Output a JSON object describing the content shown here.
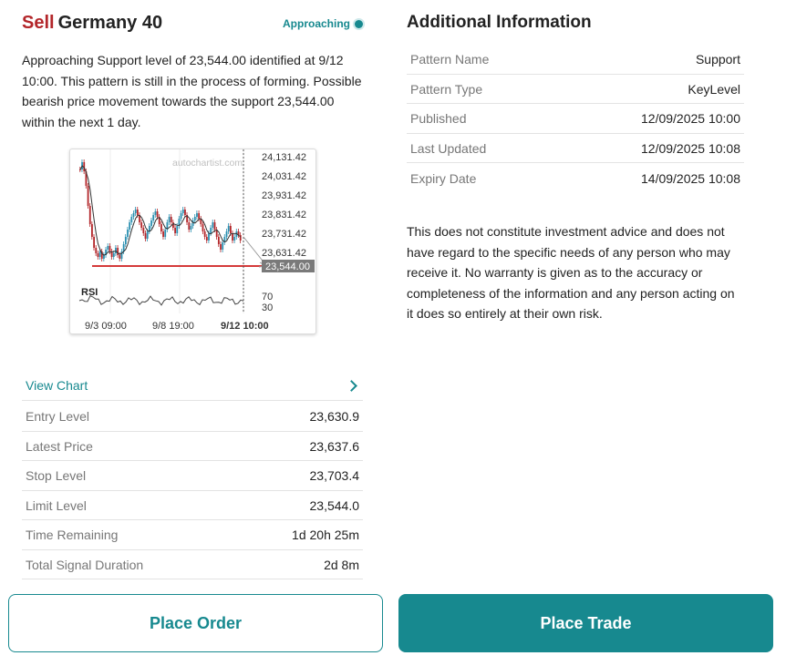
{
  "header": {
    "direction": "Sell",
    "instrument": "Germany 40",
    "status": "Approaching"
  },
  "description": "Approaching Support level of 23,544.00 identified at 9/12 10:00. This pattern is still in the process of forming. Possible bearish price movement towards the support 23,544.00 within the next 1 day.",
  "chart": {
    "watermark": "autochartist.com",
    "price_ticks": [
      "24,131.42",
      "24,031.42",
      "23,931.42",
      "23,831.42",
      "23,731.42",
      "23,631.42"
    ],
    "support_label": "23,544.00",
    "rsi_label": "RSI",
    "rsi_ticks": [
      "70",
      "30"
    ],
    "time_ticks": [
      "9/3 09:00",
      "9/8 19:00",
      "9/12 10:00"
    ],
    "colors": {
      "up": "#2a8fb0",
      "down": "#b3262a",
      "support": "#d43a3a"
    }
  },
  "view_chart_label": "View Chart",
  "levels": [
    {
      "label": "Entry Level",
      "value": "23,630.9"
    },
    {
      "label": "Latest Price",
      "value": "23,637.6"
    },
    {
      "label": "Stop Level",
      "value": "23,703.4"
    },
    {
      "label": "Limit Level",
      "value": "23,544.0"
    },
    {
      "label": "Time Remaining",
      "value": "1d 20h 25m"
    },
    {
      "label": "Total Signal Duration",
      "value": "2d 8m"
    }
  ],
  "additional": {
    "title": "Additional Information",
    "rows": [
      {
        "label": "Pattern Name",
        "value": "Support"
      },
      {
        "label": "Pattern Type",
        "value": "KeyLevel"
      },
      {
        "label": "Published",
        "value": "12/09/2025 10:00"
      },
      {
        "label": "Last Updated",
        "value": "12/09/2025 10:08"
      },
      {
        "label": "Expiry Date",
        "value": "14/09/2025 10:08"
      }
    ],
    "disclaimer": "This does not constitute investment advice and does not have regard to the specific needs of any person who may receive it. No warranty is given as to the accuracy or completeness of the information and any person acting on it does so entirely at their own risk."
  },
  "buttons": {
    "place_order": "Place Order",
    "place_trade": "Place Trade"
  },
  "accent_color": "#17898f",
  "sell_color": "#b3262a"
}
